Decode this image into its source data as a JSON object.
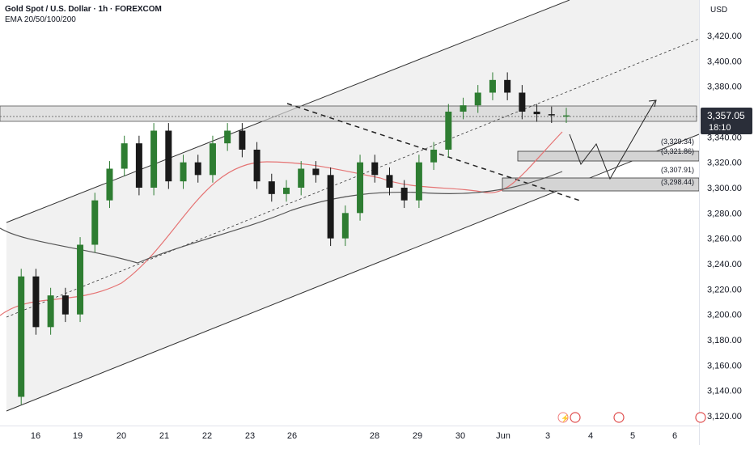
{
  "header": {
    "title": "Gold Spot / U.S. Dollar · 1h · FOREXCOM",
    "indicator": "EMA 20/50/100/200"
  },
  "axis": {
    "currency": "USD",
    "y_ticks": [
      "3,420.00",
      "3,400.00",
      "3,380.00",
      "3,360.00",
      "3,340.00",
      "3,320.00",
      "3,300.00",
      "3,280.00",
      "3,260.00",
      "3,240.00",
      "3,220.00",
      "3,200.00",
      "3,180.00",
      "3,160.00",
      "3,140.00",
      "3,120.00"
    ],
    "x_ticks": [
      "16",
      "19",
      "20",
      "21",
      "22",
      "23",
      "26",
      "28",
      "29",
      "30",
      "Jun",
      "3",
      "4",
      "5",
      "6"
    ]
  },
  "last_price": {
    "value": "3,357.05",
    "countdown": "18:10",
    "color": "#2a2e39"
  },
  "zone_labels": [
    "(3,329.34)",
    "(3,321.86)",
    "(3,307.91)",
    "(3,298.44)"
  ],
  "colors": {
    "up": "#2e7d32",
    "down": "#1a1a1a",
    "ema_fast": "#e57373",
    "ema_slow": "#555555",
    "channel_fill": "#f1f1f1",
    "zone_fill": "#d4d4d4"
  },
  "chart_data": {
    "type": "line",
    "ylim": [
      3115,
      3435
    ],
    "series": [
      {
        "x": [
          0,
          1,
          2,
          3,
          4,
          5,
          6,
          7,
          8,
          9,
          10,
          11,
          12,
          13,
          14
        ],
        "values": [
          3135,
          3230,
          3190,
          3215,
          3200,
          3255,
          3290,
          3315,
          3335,
          3300,
          3345,
          3305,
          3320,
          3310,
          3335
        ]
      },
      {
        "x": [
          15,
          16,
          17,
          18,
          19,
          20,
          21,
          22,
          23,
          24,
          25,
          26,
          27,
          28,
          29
        ],
        "values": [
          3345,
          3330,
          3305,
          3295,
          3300,
          3315,
          3310,
          3260,
          3280,
          3320,
          3310,
          3300,
          3290,
          3320,
          3330
        ]
      },
      {
        "x": [
          30,
          31,
          32,
          33,
          34,
          35,
          36,
          37,
          38
        ],
        "values": [
          3360,
          3365,
          3375,
          3385,
          3375,
          3360,
          3358,
          3357.05,
          3357.05
        ]
      }
    ]
  }
}
